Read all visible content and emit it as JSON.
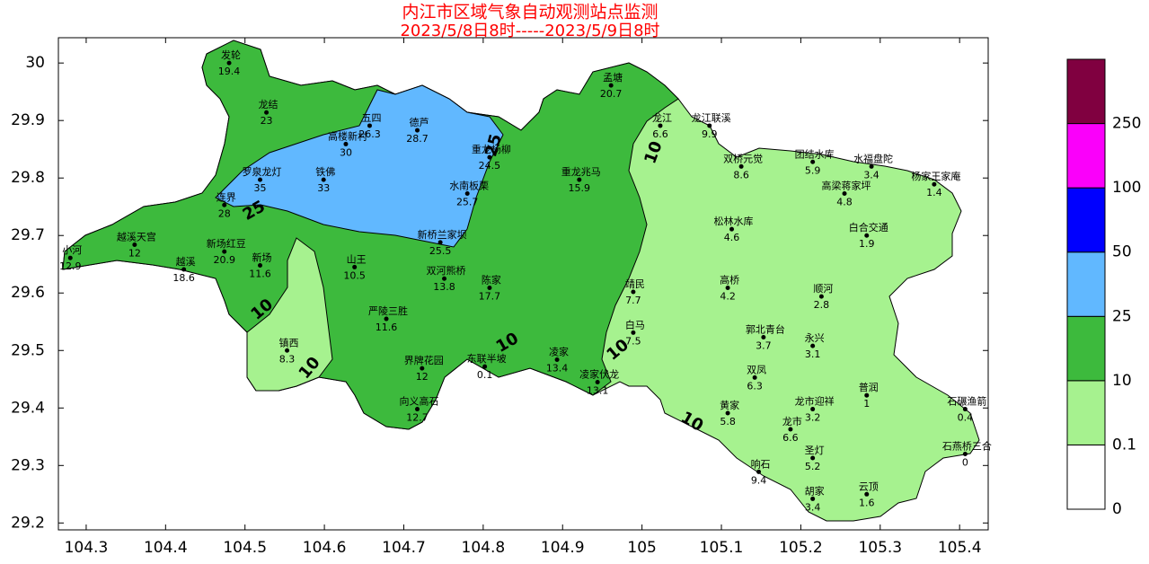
{
  "chart_data": {
    "type": "station_map",
    "title": "内江市区域气象自动观测站点监测",
    "subtitle": "2023/5/8日8时-----2023/5/9日8时",
    "xlim": [
      104.265,
      105.436
    ],
    "ylim": [
      29.188,
      30.044
    ],
    "xticks": [
      104.3,
      104.4,
      104.5,
      104.6,
      104.7,
      104.8,
      104.9,
      105,
      105.1,
      105.2,
      105.3,
      105.4
    ],
    "yticks": [
      29.2,
      29.3,
      29.4,
      29.5,
      29.6,
      29.7,
      29.8,
      29.9,
      30
    ],
    "colorbar": {
      "levels": [
        0,
        0.1,
        10,
        25,
        50,
        100,
        250
      ],
      "colors": [
        "#ffffff",
        "#a6f28f",
        "#3dba3d",
        "#61b8ff",
        "#0000ff",
        "#fa00fa",
        "#800040"
      ]
    },
    "contour_labels": [
      "25",
      "25",
      "10",
      "10",
      "10",
      "10",
      "10",
      "10"
    ],
    "stations": [
      {
        "name": "发轮",
        "lon": 104.48,
        "lat": 30.0,
        "value": 19.4
      },
      {
        "name": "龙结",
        "lon": 104.527,
        "lat": 29.914,
        "value": 23
      },
      {
        "name": "高楼新村",
        "lon": 104.627,
        "lat": 29.859,
        "value": 30
      },
      {
        "name": "五四",
        "lon": 104.657,
        "lat": 29.891,
        "value": 26.3
      },
      {
        "name": "德芦",
        "lon": 104.717,
        "lat": 29.883,
        "value": 28.7
      },
      {
        "name": "铁佛",
        "lon": 104.599,
        "lat": 29.797,
        "value": 33
      },
      {
        "name": "连界",
        "lon": 104.474,
        "lat": 29.753,
        "value": 28
      },
      {
        "name": "罗泉龙灯",
        "lon": 104.519,
        "lat": 29.797,
        "value": 35
      },
      {
        "name": "越溪天宫",
        "lon": 104.361,
        "lat": 29.684,
        "value": 12
      },
      {
        "name": "越溪",
        "lon": 104.423,
        "lat": 29.641,
        "value": 18.6
      },
      {
        "name": "小河",
        "lon": 104.28,
        "lat": 29.661,
        "value": 12.9
      },
      {
        "name": "新场红豆",
        "lon": 104.474,
        "lat": 29.672,
        "value": 20.9
      },
      {
        "name": "新场",
        "lon": 104.519,
        "lat": 29.648,
        "value": 11.6
      },
      {
        "name": "山王",
        "lon": 104.638,
        "lat": 29.645,
        "value": 10.5
      },
      {
        "name": "镇西",
        "lon": 104.553,
        "lat": 29.5,
        "value": 8.3
      },
      {
        "name": "严陵三胜",
        "lon": 104.678,
        "lat": 29.555,
        "value": 11.6
      },
      {
        "name": "界牌花园",
        "lon": 104.723,
        "lat": 29.469,
        "value": 12
      },
      {
        "name": "向义高石",
        "lon": 104.717,
        "lat": 29.398,
        "value": 12.7
      },
      {
        "name": "东联半坡",
        "lon": 104.802,
        "lat": 29.472,
        "value": 0.1
      },
      {
        "name": "凌家",
        "lon": 104.893,
        "lat": 29.484,
        "value": 13.4
      },
      {
        "name": "凌家伏龙",
        "lon": 104.944,
        "lat": 29.445,
        "value": 13.1
      },
      {
        "name": "重龙杨柳",
        "lon": 104.808,
        "lat": 29.836,
        "value": 24.5
      },
      {
        "name": "水南板栗",
        "lon": 104.78,
        "lat": 29.773,
        "value": 25.7
      },
      {
        "name": "重龙兆马",
        "lon": 104.921,
        "lat": 29.797,
        "value": 15.9
      },
      {
        "name": "孟塘",
        "lon": 104.961,
        "lat": 29.961,
        "value": 20.7
      },
      {
        "name": "龙江",
        "lon": 105.023,
        "lat": 29.891,
        "value": 6.6
      },
      {
        "name": "龙江联溪",
        "lon": 105.085,
        "lat": 29.891,
        "value": 9.9
      },
      {
        "name": "双桥元觉",
        "lon": 105.125,
        "lat": 29.82,
        "value": 8.6
      },
      {
        "name": "团结水库",
        "lon": 105.215,
        "lat": 29.828,
        "value": 5.9
      },
      {
        "name": "水福盘陀",
        "lon": 105.289,
        "lat": 29.82,
        "value": 3.4
      },
      {
        "name": "杨家王家庵",
        "lon": 105.368,
        "lat": 29.789,
        "value": 1.4
      },
      {
        "name": "高梁蒋家坪",
        "lon": 105.255,
        "lat": 29.773,
        "value": 4.8
      },
      {
        "name": "松林水库",
        "lon": 105.113,
        "lat": 29.711,
        "value": 4.6
      },
      {
        "name": "白合交通",
        "lon": 105.283,
        "lat": 29.7,
        "value": 1.9
      },
      {
        "name": "高桥",
        "lon": 105.108,
        "lat": 29.609,
        "value": 4.2
      },
      {
        "name": "顺河",
        "lon": 105.226,
        "lat": 29.594,
        "value": 2.8
      },
      {
        "name": "郭北青台",
        "lon": 105.153,
        "lat": 29.523,
        "value": 3.7
      },
      {
        "name": "永兴",
        "lon": 105.215,
        "lat": 29.508,
        "value": 3.1
      },
      {
        "name": "双凤",
        "lon": 105.142,
        "lat": 29.453,
        "value": 6.3
      },
      {
        "name": "龙市迎祥",
        "lon": 105.215,
        "lat": 29.398,
        "value": 3.2
      },
      {
        "name": "龙市",
        "lon": 105.187,
        "lat": 29.363,
        "value": 6.6
      },
      {
        "name": "圣灯",
        "lon": 105.215,
        "lat": 29.313,
        "value": 5.2
      },
      {
        "name": "响石",
        "lon": 105.147,
        "lat": 29.289,
        "value": 9.4
      },
      {
        "name": "胡家",
        "lon": 105.215,
        "lat": 29.242,
        "value": 3.4
      },
      {
        "name": "云顶",
        "lon": 105.283,
        "lat": 29.25,
        "value": 1.6
      },
      {
        "name": "石碾渔箭",
        "lon": 105.407,
        "lat": 29.398,
        "value": 0.4
      },
      {
        "name": "石燕桥三合",
        "lon": 105.407,
        "lat": 29.32,
        "value": 0
      },
      {
        "name": "普润",
        "lon": 105.283,
        "lat": 29.422,
        "value": 1
      },
      {
        "name": "黄家",
        "lon": 105.108,
        "lat": 29.391,
        "value": 5.8
      },
      {
        "name": "白马",
        "lon": 104.989,
        "lat": 29.531,
        "value": 7.5
      },
      {
        "name": "靖民",
        "lon": 104.989,
        "lat": 29.602,
        "value": 7.7
      },
      {
        "name": "双河熊桥",
        "lon": 104.751,
        "lat": 29.625,
        "value": 13.8
      },
      {
        "name": "新桥兰家坝",
        "lon": 104.746,
        "lat": 29.688,
        "value": 25.5
      },
      {
        "name": "陈家",
        "lon": 104.808,
        "lat": 29.609,
        "value": 17.7
      }
    ]
  }
}
